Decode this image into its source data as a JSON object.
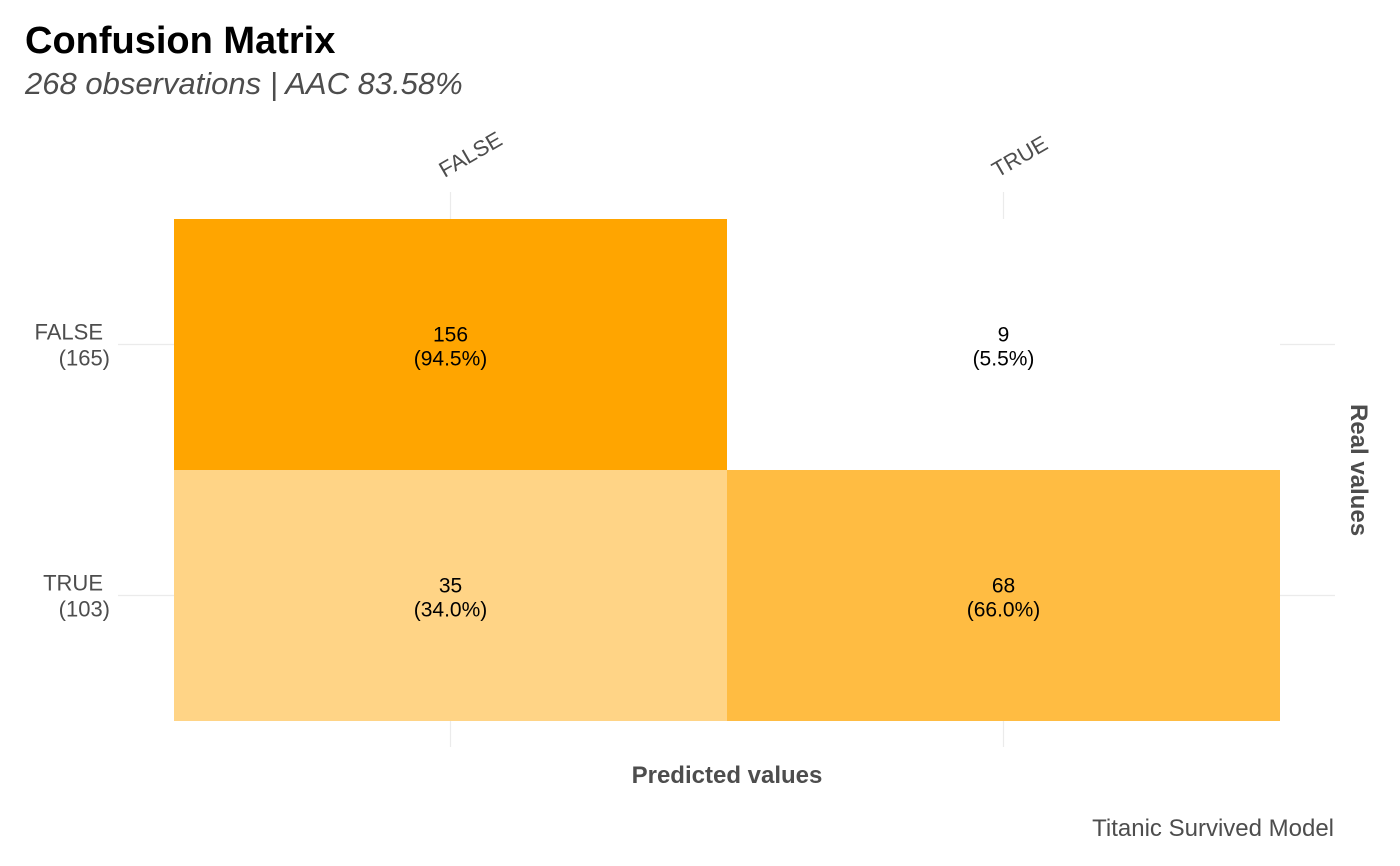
{
  "chart_data": {
    "type": "heatmap",
    "title": "Confusion Matrix",
    "subtitle": "268 observations | AAC 83.58%",
    "xlabel": "Predicted values",
    "ylabel": "Real values",
    "caption": "Titanic Survived Model",
    "x_categories": [
      "FALSE",
      "TRUE"
    ],
    "y_categories": [
      {
        "label": "FALSE",
        "total": "(165)"
      },
      {
        "label": "TRUE",
        "total": "(103)"
      }
    ],
    "cells": [
      {
        "real": "FALSE",
        "predicted": "FALSE",
        "count": 156,
        "pct": "(94.5%)",
        "share": 0.945
      },
      {
        "real": "FALSE",
        "predicted": "TRUE",
        "count": 9,
        "pct": "(5.5%)",
        "share": 0.055
      },
      {
        "real": "TRUE",
        "predicted": "FALSE",
        "count": 35,
        "pct": "(34.0%)",
        "share": 0.34
      },
      {
        "real": "TRUE",
        "predicted": "TRUE",
        "count": 68,
        "pct": "(66.0%)",
        "share": 0.66
      }
    ],
    "fill_color": "#ffa500",
    "grid": true
  }
}
